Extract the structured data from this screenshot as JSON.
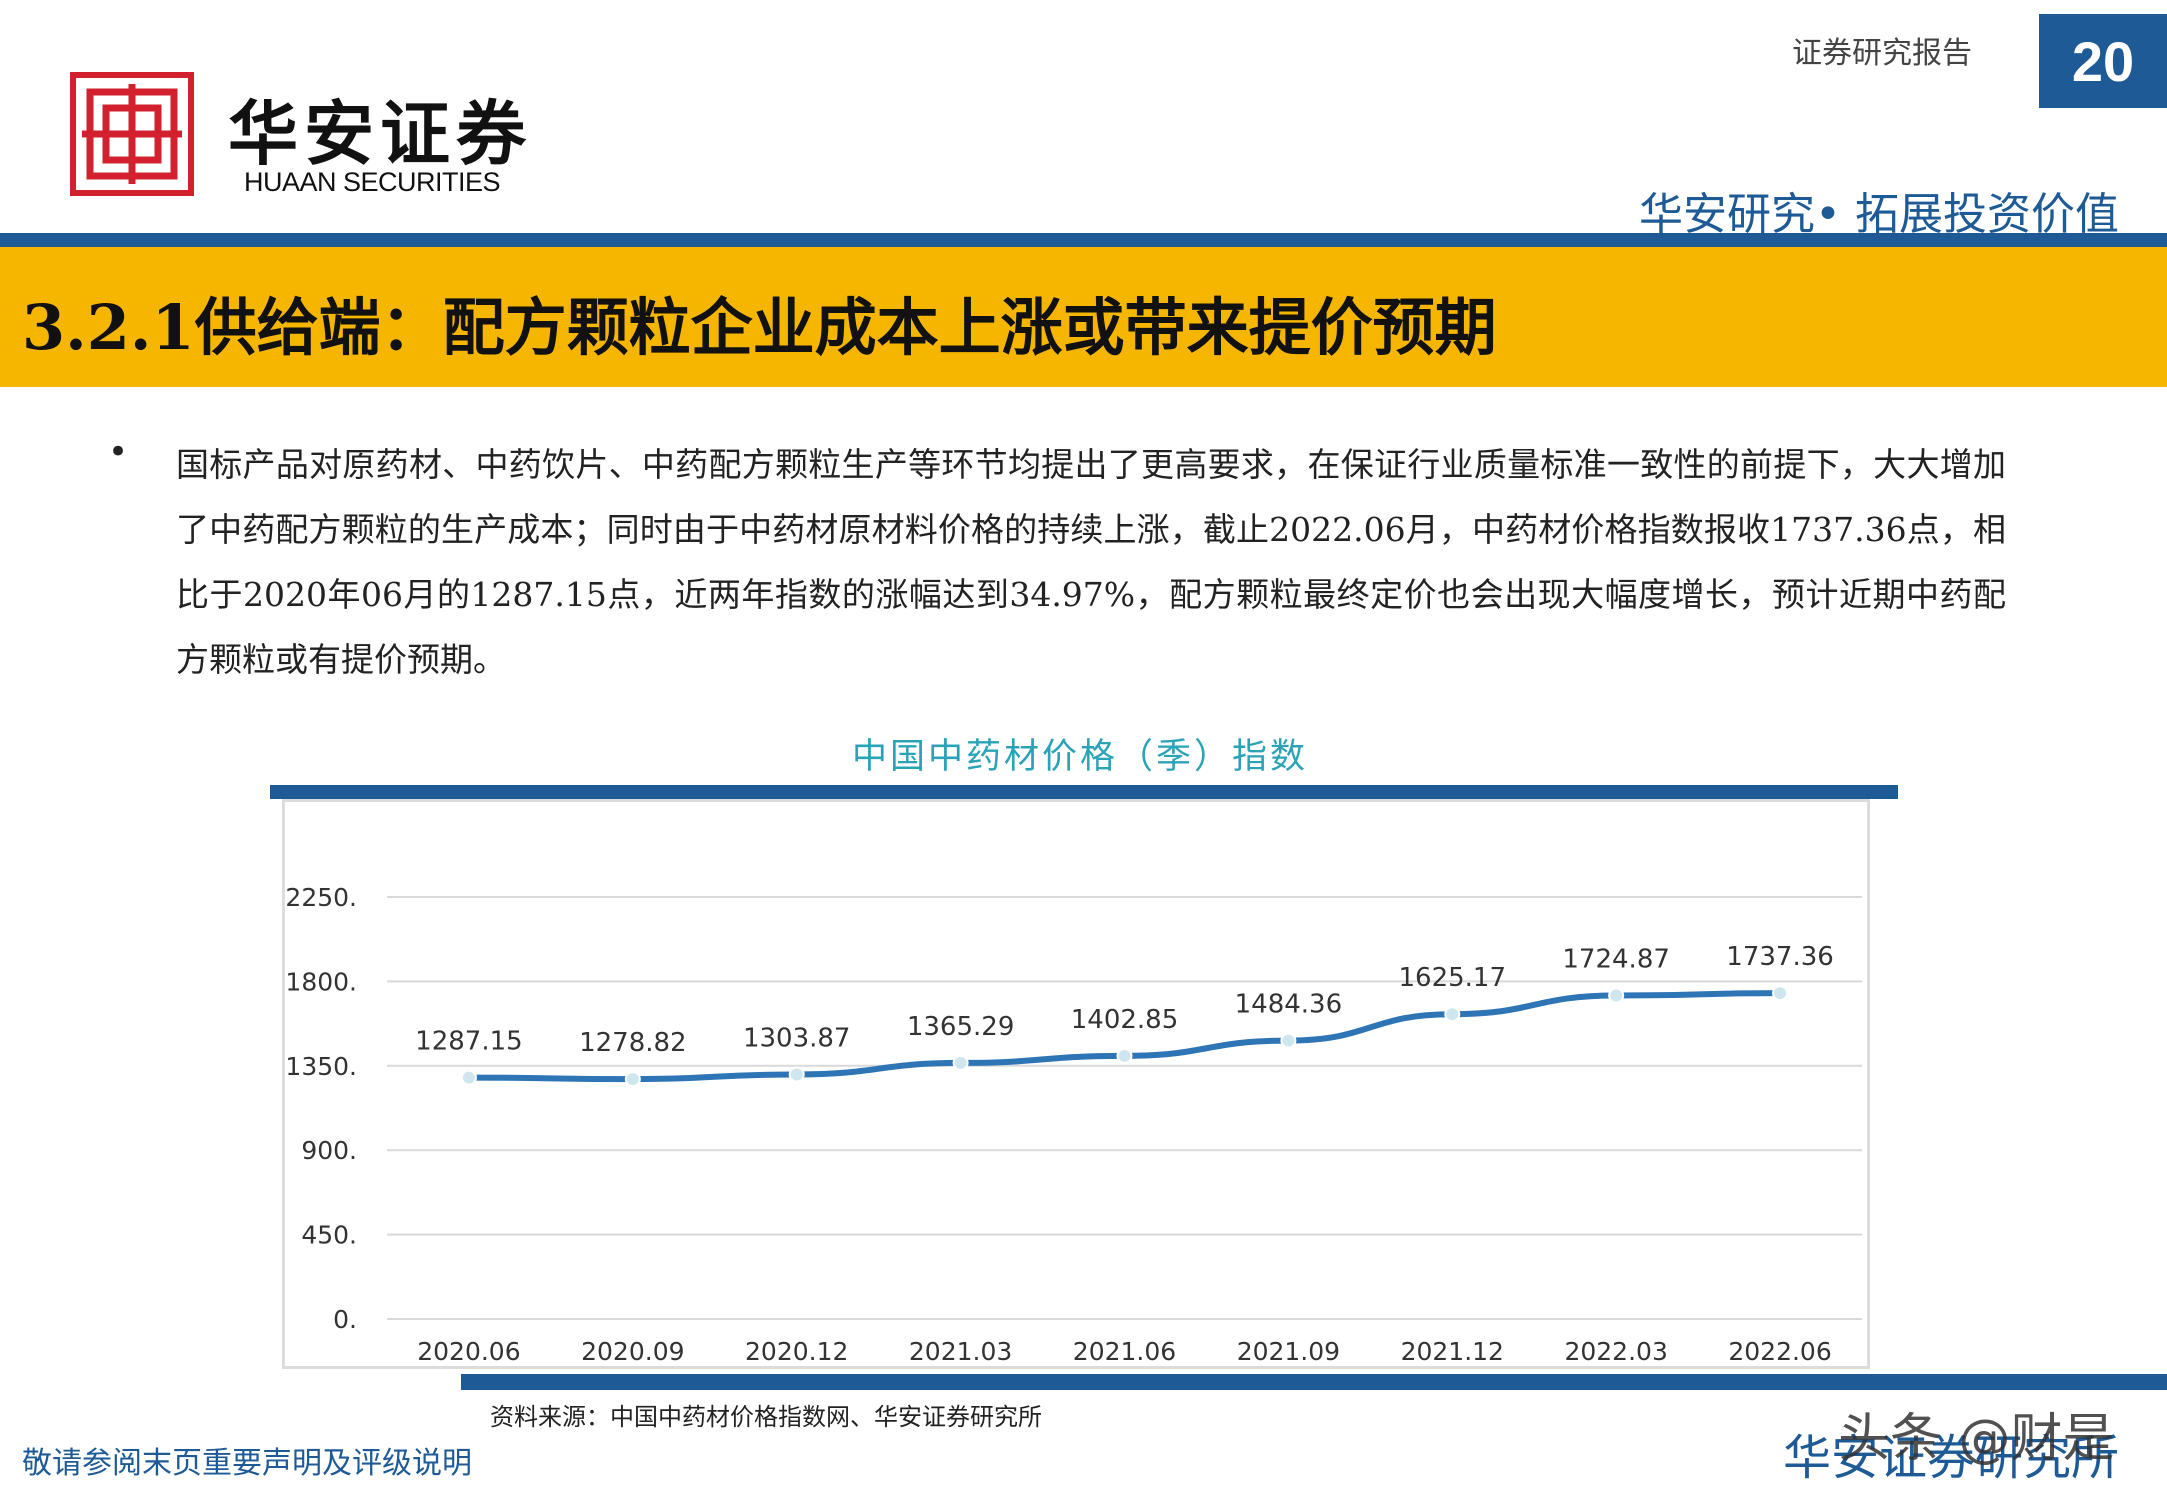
{
  "header": {
    "logo_cn": "华安证券",
    "logo_en": "HUAAN SECURITIES",
    "report_type": "证券研究报告",
    "page_number": "20",
    "slogan": "华安研究• 拓展投资价值",
    "brand_color": "#1e5b96",
    "logo_color": "#d2202f"
  },
  "section": {
    "title": "3.2.1供给端：配方颗粒企业成本上涨或带来提价预期",
    "band_color": "#f6b600"
  },
  "body": {
    "bullet": "•",
    "paragraph": "国标产品对原药材、中药饮片、中药配方颗粒生产等环节均提出了更高要求，在保证行业质量标准一致性的前提下，大大增加了中药配方颗粒的生产成本；同时由于中药材原材料价格的持续上涨，截止2022.06月，中药材价格指数报收1737.36点，相比于2020年06月的1287.15点，近两年指数的涨幅达到34.97%，配方颗粒最终定价也会出现大幅度增长，预计近期中药配方颗粒或有提价预期。"
  },
  "chart_data": {
    "type": "line",
    "title": "中国中药材价格（季）指数",
    "categories": [
      "2020.06",
      "2020.09",
      "2020.12",
      "2021.03",
      "2021.06",
      "2021.09",
      "2021.12",
      "2022.03",
      "2022.06"
    ],
    "series": [
      {
        "values": [
          1287.15,
          1278.82,
          1303.87,
          1365.29,
          1402.85,
          1484.36,
          1625.17,
          1724.87,
          1737.36
        ],
        "labels": [
          "1287.15",
          "1278.82",
          "1303.87",
          "1365.29",
          "1402.85",
          "1484.36",
          "1625.17",
          "1724.87",
          "1737.36"
        ],
        "color": "#2e75b6"
      }
    ],
    "yticks": [
      "0.",
      "450.",
      "900.",
      "1350.",
      "1800.",
      "2250."
    ],
    "ylim": [
      0,
      2250
    ],
    "grid": true,
    "legend": "none"
  },
  "footer": {
    "source": "资料来源：中国中药材价格指数网、华安证券研究所",
    "disclaimer": "敬请参阅末页重要声明及评级说明",
    "brand": "华安证券研究所",
    "watermark": "头条 @财是"
  }
}
